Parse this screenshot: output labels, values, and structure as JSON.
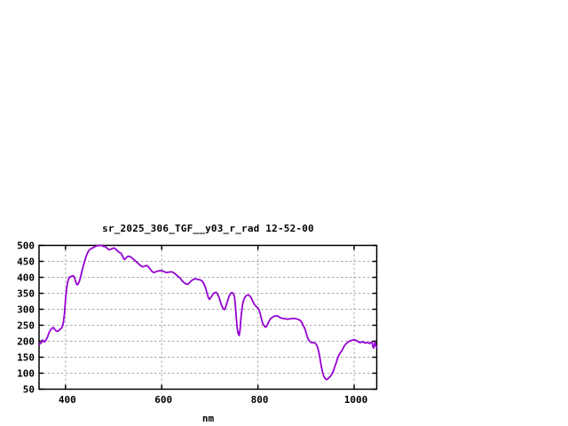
{
  "window": {
    "background": "#ffffff"
  },
  "chart_data": {
    "type": "line",
    "title": "sr_2025_306_TGF__y03_r_rad 12-52-00",
    "xlabel": "nm",
    "ylabel": "",
    "xlim": [
      345,
      1047
    ],
    "ylim": [
      50,
      500
    ],
    "xticks": [
      400,
      600,
      800,
      1000
    ],
    "yticks": [
      50,
      100,
      150,
      200,
      250,
      300,
      350,
      400,
      450,
      500
    ],
    "grid": true,
    "legend": "none",
    "colors": {
      "line": "#9400d3",
      "grid": "#aaaaaa",
      "border": "#000000",
      "text": "#000000"
    },
    "series": [
      {
        "name": "sr_2025_306_TGF__y03_r_rad",
        "points": [
          [
            345,
            190
          ],
          [
            348,
            193
          ],
          [
            350,
            196
          ],
          [
            352,
            204
          ],
          [
            354,
            201
          ],
          [
            356,
            198
          ],
          [
            358,
            200
          ],
          [
            360,
            205
          ],
          [
            363,
            215
          ],
          [
            366,
            228
          ],
          [
            369,
            236
          ],
          [
            372,
            240
          ],
          [
            374,
            243
          ],
          [
            376,
            241
          ],
          [
            378,
            236
          ],
          [
            381,
            232
          ],
          [
            384,
            231
          ],
          [
            386,
            234
          ],
          [
            389,
            238
          ],
          [
            392,
            242
          ],
          [
            394,
            248
          ],
          [
            396,
            262
          ],
          [
            398,
            288
          ],
          [
            400,
            330
          ],
          [
            402,
            362
          ],
          [
            404,
            382
          ],
          [
            406,
            394
          ],
          [
            408,
            400
          ],
          [
            410,
            402
          ],
          [
            412,
            403
          ],
          [
            414,
            404
          ],
          [
            416,
            405
          ],
          [
            418,
            401
          ],
          [
            420,
            392
          ],
          [
            422,
            383
          ],
          [
            424,
            377
          ],
          [
            426,
            378
          ],
          [
            428,
            385
          ],
          [
            431,
            398
          ],
          [
            434,
            418
          ],
          [
            437,
            436
          ],
          [
            440,
            452
          ],
          [
            443,
            466
          ],
          [
            446,
            477
          ],
          [
            449,
            485
          ],
          [
            452,
            489
          ],
          [
            455,
            491
          ],
          [
            458,
            493
          ],
          [
            461,
            496
          ],
          [
            464,
            498
          ],
          [
            467,
            499
          ],
          [
            470,
            500
          ],
          [
            473,
            500
          ],
          [
            476,
            499
          ],
          [
            479,
            497
          ],
          [
            482,
            496
          ],
          [
            485,
            493
          ],
          [
            488,
            489
          ],
          [
            491,
            486
          ],
          [
            494,
            488
          ],
          [
            497,
            490
          ],
          [
            500,
            492
          ],
          [
            503,
            490
          ],
          [
            506,
            486
          ],
          [
            509,
            481
          ],
          [
            512,
            478
          ],
          [
            515,
            476
          ],
          [
            518,
            468
          ],
          [
            521,
            459
          ],
          [
            523,
            456
          ],
          [
            526,
            461
          ],
          [
            529,
            465
          ],
          [
            532,
            466
          ],
          [
            535,
            464
          ],
          [
            538,
            461
          ],
          [
            541,
            457
          ],
          [
            544,
            453
          ],
          [
            548,
            448
          ],
          [
            552,
            442
          ],
          [
            556,
            437
          ],
          [
            560,
            433
          ],
          [
            563,
            434
          ],
          [
            566,
            436
          ],
          [
            569,
            437
          ],
          [
            572,
            433
          ],
          [
            575,
            428
          ],
          [
            578,
            422
          ],
          [
            581,
            417
          ],
          [
            584,
            415
          ],
          [
            587,
            417
          ],
          [
            590,
            419
          ],
          [
            594,
            420
          ],
          [
            598,
            421
          ],
          [
            602,
            420
          ],
          [
            606,
            417
          ],
          [
            610,
            415
          ],
          [
            614,
            416
          ],
          [
            618,
            417
          ],
          [
            622,
            417
          ],
          [
            626,
            413
          ],
          [
            630,
            408
          ],
          [
            634,
            403
          ],
          [
            638,
            398
          ],
          [
            642,
            390
          ],
          [
            646,
            384
          ],
          [
            650,
            380
          ],
          [
            653,
            378
          ],
          [
            656,
            380
          ],
          [
            660,
            387
          ],
          [
            664,
            392
          ],
          [
            668,
            395
          ],
          [
            672,
            395
          ],
          [
            676,
            393
          ],
          [
            680,
            392
          ],
          [
            684,
            389
          ],
          [
            688,
            379
          ],
          [
            691,
            368
          ],
          [
            694,
            351
          ],
          [
            697,
            336
          ],
          [
            699,
            331
          ],
          [
            701,
            335
          ],
          [
            704,
            341
          ],
          [
            707,
            348
          ],
          [
            710,
            352
          ],
          [
            713,
            353
          ],
          [
            716,
            348
          ],
          [
            719,
            338
          ],
          [
            722,
            324
          ],
          [
            725,
            310
          ],
          [
            728,
            302
          ],
          [
            730,
            299
          ],
          [
            732,
            303
          ],
          [
            735,
            317
          ],
          [
            738,
            332
          ],
          [
            741,
            344
          ],
          [
            744,
            351
          ],
          [
            746,
            352
          ],
          [
            749,
            349
          ],
          [
            751,
            341
          ],
          [
            753,
            316
          ],
          [
            755,
            275
          ],
          [
            757,
            240
          ],
          [
            759,
            224
          ],
          [
            761,
            218
          ],
          [
            763,
            238
          ],
          [
            765,
            277
          ],
          [
            768,
            315
          ],
          [
            771,
            332
          ],
          [
            774,
            340
          ],
          [
            777,
            344
          ],
          [
            780,
            345
          ],
          [
            783,
            342
          ],
          [
            786,
            336
          ],
          [
            789,
            326
          ],
          [
            792,
            317
          ],
          [
            795,
            311
          ],
          [
            798,
            307
          ],
          [
            801,
            302
          ],
          [
            804,
            291
          ],
          [
            807,
            272
          ],
          [
            810,
            256
          ],
          [
            813,
            248
          ],
          [
            816,
            244
          ],
          [
            819,
            249
          ],
          [
            822,
            259
          ],
          [
            825,
            268
          ],
          [
            828,
            273
          ],
          [
            832,
            277
          ],
          [
            836,
            279
          ],
          [
            839,
            280
          ],
          [
            842,
            278
          ],
          [
            846,
            274
          ],
          [
            850,
            272
          ],
          [
            854,
            271
          ],
          [
            858,
            270
          ],
          [
            862,
            269
          ],
          [
            866,
            270
          ],
          [
            870,
            271
          ],
          [
            874,
            271
          ],
          [
            878,
            271
          ],
          [
            882,
            269
          ],
          [
            886,
            267
          ],
          [
            889,
            264
          ],
          [
            892,
            256
          ],
          [
            895,
            247
          ],
          [
            898,
            238
          ],
          [
            901,
            222
          ],
          [
            904,
            208
          ],
          [
            907,
            201
          ],
          [
            910,
            197
          ],
          [
            913,
            195
          ],
          [
            916,
            196
          ],
          [
            919,
            194
          ],
          [
            922,
            189
          ],
          [
            925,
            176
          ],
          [
            928,
            156
          ],
          [
            931,
            128
          ],
          [
            934,
            104
          ],
          [
            937,
            90
          ],
          [
            940,
            83
          ],
          [
            942,
            80
          ],
          [
            945,
            82
          ],
          [
            948,
            86
          ],
          [
            951,
            91
          ],
          [
            954,
            98
          ],
          [
            957,
            107
          ],
          [
            960,
            121
          ],
          [
            963,
            134
          ],
          [
            966,
            149
          ],
          [
            969,
            158
          ],
          [
            972,
            165
          ],
          [
            975,
            172
          ],
          [
            978,
            181
          ],
          [
            981,
            188
          ],
          [
            984,
            193
          ],
          [
            987,
            197
          ],
          [
            990,
            200
          ],
          [
            993,
            202
          ],
          [
            996,
            203
          ],
          [
            999,
            205
          ],
          [
            1002,
            204
          ],
          [
            1005,
            202
          ],
          [
            1008,
            199
          ],
          [
            1011,
            196
          ],
          [
            1014,
            196
          ],
          [
            1017,
            199
          ],
          [
            1020,
            197
          ],
          [
            1023,
            194
          ],
          [
            1026,
            196
          ],
          [
            1029,
            195
          ],
          [
            1032,
            193
          ],
          [
            1035,
            196
          ],
          [
            1037,
            198
          ],
          [
            1039,
            182
          ],
          [
            1041,
            179
          ],
          [
            1043,
            197
          ],
          [
            1045,
            186
          ],
          [
            1047,
            182
          ]
        ]
      }
    ]
  }
}
